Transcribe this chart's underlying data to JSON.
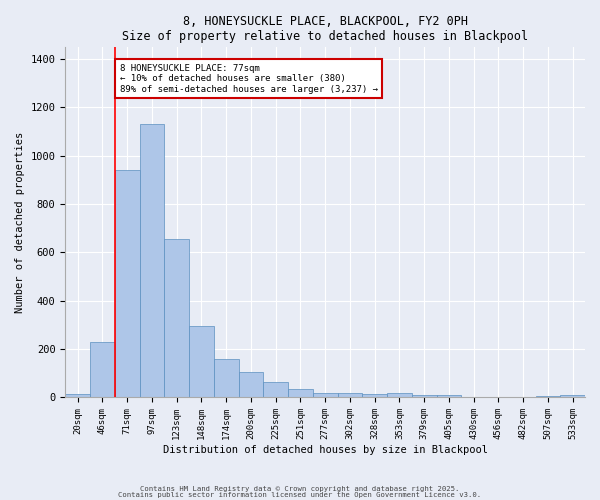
{
  "title1": "8, HONEYSUCKLE PLACE, BLACKPOOL, FY2 0PH",
  "title2": "Size of property relative to detached houses in Blackpool",
  "xlabel": "Distribution of detached houses by size in Blackpool",
  "ylabel": "Number of detached properties",
  "categories": [
    "20sqm",
    "46sqm",
    "71sqm",
    "97sqm",
    "123sqm",
    "148sqm",
    "174sqm",
    "200sqm",
    "225sqm",
    "251sqm",
    "277sqm",
    "302sqm",
    "328sqm",
    "353sqm",
    "379sqm",
    "405sqm",
    "430sqm",
    "456sqm",
    "482sqm",
    "507sqm",
    "533sqm"
  ],
  "values": [
    15,
    230,
    940,
    1130,
    655,
    295,
    160,
    105,
    65,
    37,
    20,
    18,
    15,
    20,
    12,
    10,
    0,
    0,
    0,
    5,
    10
  ],
  "bar_color": "#aec6e8",
  "bar_edge_color": "#5a8fc0",
  "background_color": "#e8ecf5",
  "grid_color": "#ffffff",
  "red_line_index": 2,
  "annotation_text": "8 HONEYSUCKLE PLACE: 77sqm\n← 10% of detached houses are smaller (380)\n89% of semi-detached houses are larger (3,237) →",
  "annotation_box_color": "#ffffff",
  "annotation_box_edge": "#cc0000",
  "ylim": [
    0,
    1450
  ],
  "yticks": [
    0,
    200,
    400,
    600,
    800,
    1000,
    1200,
    1400
  ],
  "footer1": "Contains HM Land Registry data © Crown copyright and database right 2025.",
  "footer2": "Contains public sector information licensed under the Open Government Licence v3.0."
}
